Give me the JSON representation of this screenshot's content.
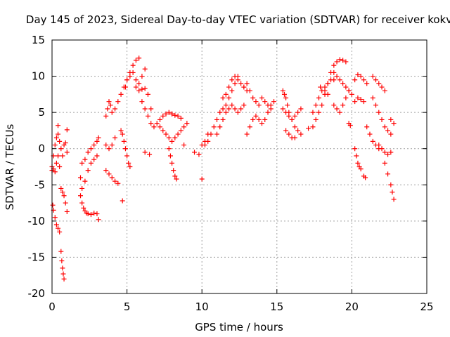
{
  "chart_data": {
    "type": "scatter",
    "title": "Day 145 of 2023, Sidereal Day-to-day VTEC variation (SDTVAR) for receiver kokv",
    "xlabel": "GPS time / hours",
    "ylabel": "SDTVAR / TECUs",
    "xlim": [
      0,
      25
    ],
    "ylim": [
      -20,
      15
    ],
    "xticks": [
      0,
      5,
      10,
      15,
      20,
      25
    ],
    "yticks": [
      -20,
      -15,
      -10,
      -5,
      0,
      5,
      10,
      15
    ],
    "grid": true,
    "marker": "+",
    "marker_color": "#ff0000",
    "series": [
      {
        "name": "arc1",
        "x": [
          0.0,
          0.1,
          0.2,
          0.3,
          0.4,
          0.5,
          0.6,
          0.7,
          0.8,
          0.9,
          1.0
        ],
        "y": [
          -2.5,
          -1.0,
          0.5,
          1.5,
          2.0,
          1.0,
          0.0,
          -1.0,
          0.5,
          0.8,
          -0.5
        ]
      },
      {
        "name": "arc2",
        "x": [
          0.0,
          0.1,
          0.2,
          0.3,
          0.4,
          0.5
        ],
        "y": [
          -3.0,
          -2.8,
          -3.2,
          -2.0,
          -1.0,
          -2.5
        ]
      },
      {
        "name": "arc3",
        "x": [
          0.05,
          0.1,
          0.2,
          0.3,
          0.4,
          0.5
        ],
        "y": [
          -7.8,
          -8.5,
          -9.5,
          -10.5,
          -11.0,
          -11.5
        ]
      },
      {
        "name": "arc4",
        "x": [
          0.6,
          0.65,
          0.7,
          0.75,
          0.8
        ],
        "y": [
          -14.2,
          -15.5,
          -16.5,
          -17.3,
          -18.0
        ]
      },
      {
        "name": "arc5",
        "x": [
          0.6,
          0.7,
          0.8,
          0.9,
          1.0
        ],
        "y": [
          -5.5,
          -6.0,
          -6.5,
          -7.5,
          -8.7
        ]
      },
      {
        "name": "arc6",
        "x": [
          0.4,
          1.0
        ],
        "y": [
          3.2,
          2.6
        ]
      },
      {
        "name": "arc7",
        "x": [
          1.9,
          2.0,
          2.1,
          2.2,
          2.3,
          2.4,
          2.6,
          2.8,
          3.0,
          3.1
        ],
        "y": [
          -6.5,
          -7.5,
          -8.2,
          -8.6,
          -8.9,
          -9.0,
          -9.1,
          -8.9,
          -9.0,
          -9.8
        ]
      },
      {
        "name": "arc8",
        "x": [
          1.9,
          2.0,
          2.2,
          2.4,
          2.6,
          2.8,
          3.0
        ],
        "y": [
          -4.0,
          -5.5,
          -4.5,
          -3.0,
          -2.0,
          -1.5,
          -1.0
        ]
      },
      {
        "name": "arc9",
        "x": [
          2.0,
          2.2,
          2.4,
          2.6,
          2.8,
          3.0,
          3.1
        ],
        "y": [
          -2.0,
          -1.5,
          -0.5,
          0.0,
          0.5,
          1.0,
          1.5
        ]
      },
      {
        "name": "arc10",
        "x": [
          3.6,
          3.7,
          3.8,
          3.9,
          4.0,
          4.2,
          4.4,
          4.6,
          4.8,
          5.0,
          5.2,
          5.4,
          5.6,
          5.8
        ],
        "y": [
          4.5,
          5.5,
          6.5,
          6.0,
          5.0,
          5.5,
          6.5,
          7.5,
          8.5,
          9.5,
          10.5,
          11.5,
          12.2,
          12.5
        ]
      },
      {
        "name": "arc11",
        "x": [
          3.6,
          3.8,
          4.0,
          4.2,
          4.4
        ],
        "y": [
          -3.0,
          -3.5,
          -4.0,
          -4.5,
          -4.8
        ]
      },
      {
        "name": "arc12",
        "x": [
          3.6,
          3.8,
          4.0,
          4.2
        ],
        "y": [
          0.5,
          0.0,
          0.5,
          1.5
        ]
      },
      {
        "name": "arc13",
        "x": [
          4.6,
          4.7,
          4.8,
          4.9,
          5.0,
          5.1,
          5.2
        ],
        "y": [
          2.5,
          2.0,
          1.0,
          0.0,
          -1.0,
          -2.0,
          -2.5
        ]
      },
      {
        "name": "arc14",
        "x": [
          4.7
        ],
        "y": [
          -7.2
        ]
      },
      {
        "name": "arc15",
        "x": [
          4.9,
          5.0,
          5.2,
          5.4,
          5.6,
          5.8,
          6.0,
          6.2
        ],
        "y": [
          8.5,
          9.5,
          10.0,
          10.5,
          9.5,
          9.0,
          10.0,
          11.0
        ]
      },
      {
        "name": "arc16",
        "x": [
          5.6,
          5.8,
          6.0,
          6.2,
          6.4,
          6.6
        ],
        "y": [
          8.5,
          8.0,
          6.5,
          5.5,
          4.5,
          3.5
        ]
      },
      {
        "name": "arc17",
        "x": [
          6.0,
          6.2,
          6.4,
          6.6,
          6.8
        ],
        "y": [
          8.2,
          8.3,
          7.5,
          5.5,
          3.0
        ]
      },
      {
        "name": "arc18",
        "x": [
          6.2,
          6.5
        ],
        "y": [
          -0.5,
          -0.8
        ]
      },
      {
        "name": "arc19",
        "x": [
          7.0,
          7.2,
          7.4,
          7.6,
          7.8,
          8.0
        ],
        "y": [
          3.5,
          4.0,
          4.5,
          4.8,
          5.0,
          4.8
        ]
      },
      {
        "name": "arc20",
        "x": [
          7.2,
          7.4,
          7.6,
          7.8,
          8.0,
          8.2,
          8.4,
          8.6,
          8.8,
          9.0
        ],
        "y": [
          3.0,
          2.5,
          2.0,
          1.5,
          1.0,
          1.5,
          2.0,
          2.5,
          3.0,
          3.5
        ]
      },
      {
        "name": "arc21",
        "x": [
          7.8,
          7.9,
          8.0,
          8.1,
          8.2,
          8.3
        ],
        "y": [
          0.0,
          -1.0,
          -2.0,
          -3.0,
          -3.8,
          -4.2
        ]
      },
      {
        "name": "arc22",
        "x": [
          8.0,
          8.2,
          8.4,
          8.6,
          8.8
        ],
        "y": [
          4.8,
          4.6,
          4.5,
          4.2,
          0.5
        ]
      },
      {
        "name": "arc23",
        "x": [
          9.5,
          9.8,
          10.0,
          10.2,
          10.4
        ],
        "y": [
          -0.5,
          -0.8,
          0.5,
          1.0,
          2.0
        ]
      },
      {
        "name": "arc24",
        "x": [
          10.0
        ],
        "y": [
          -4.2
        ]
      },
      {
        "name": "arc25",
        "x": [
          10.2,
          10.4,
          10.6,
          10.8,
          11.0,
          11.2,
          11.4,
          11.6,
          11.8,
          12.0,
          12.2,
          12.4
        ],
        "y": [
          0.5,
          1.0,
          2.0,
          3.0,
          4.0,
          5.0,
          5.5,
          6.0,
          7.0,
          8.0,
          9.0,
          10.0
        ]
      },
      {
        "name": "arc26",
        "x": [
          11.0,
          11.2,
          11.4,
          11.6,
          11.8,
          12.0,
          12.2,
          12.4,
          12.6,
          12.8
        ],
        "y": [
          2.0,
          3.0,
          4.0,
          5.0,
          5.5,
          6.0,
          5.5,
          5.0,
          5.5,
          6.0
        ]
      },
      {
        "name": "arc27",
        "x": [
          11.4,
          11.6,
          11.8,
          12.0,
          12.2,
          12.4,
          12.6,
          12.8,
          13.0
        ],
        "y": [
          7.0,
          7.5,
          8.5,
          9.5,
          10.0,
          9.5,
          9.0,
          8.5,
          8.0
        ]
      },
      {
        "name": "arc28",
        "x": [
          12.8,
          13.0,
          13.2,
          13.4,
          13.6,
          13.8,
          14.0,
          14.2,
          14.4,
          14.6
        ],
        "y": [
          8.5,
          9.0,
          8.0,
          7.0,
          6.5,
          6.0,
          7.0,
          6.5,
          6.0,
          5.5
        ]
      },
      {
        "name": "arc29",
        "x": [
          13.0,
          13.2,
          13.4,
          13.6,
          13.8
        ],
        "y": [
          2.0,
          3.0,
          4.0,
          4.5,
          4.0
        ]
      },
      {
        "name": "arc30",
        "x": [
          14.0,
          14.2,
          14.4,
          14.6,
          14.8
        ],
        "y": [
          3.5,
          4.0,
          5.0,
          6.0,
          6.5
        ]
      },
      {
        "name": "arc31",
        "x": [
          15.4,
          15.5,
          15.6,
          15.7,
          15.8,
          16.0,
          16.2,
          16.4,
          16.6
        ],
        "y": [
          8.0,
          7.5,
          7.0,
          6.0,
          5.0,
          4.0,
          3.0,
          2.5,
          2.0
        ]
      },
      {
        "name": "arc32",
        "x": [
          15.4,
          15.6,
          15.8,
          16.0,
          16.2,
          16.4,
          16.6
        ],
        "y": [
          5.5,
          5.0,
          4.5,
          4.0,
          4.5,
          5.0,
          5.5
        ]
      },
      {
        "name": "arc33",
        "x": [
          15.6,
          15.8,
          16.0,
          16.2
        ],
        "y": [
          2.5,
          2.0,
          1.5,
          1.5
        ]
      },
      {
        "name": "arc34",
        "x": [
          17.1
        ],
        "y": [
          2.8
        ]
      },
      {
        "name": "arc35",
        "x": [
          17.4,
          17.6,
          17.8,
          18.0,
          18.2,
          18.4,
          18.6,
          18.8,
          19.0,
          19.2,
          19.4,
          19.6
        ],
        "y": [
          3.0,
          4.0,
          5.0,
          6.0,
          7.5,
          9.0,
          10.5,
          11.5,
          12.0,
          12.3,
          12.2,
          12.0
        ]
      },
      {
        "name": "arc36",
        "x": [
          17.4,
          17.6,
          17.8,
          18.0,
          18.2,
          18.4,
          18.6,
          18.8
        ],
        "y": [
          5.0,
          6.0,
          7.0,
          8.0,
          8.5,
          9.0,
          9.5,
          9.5
        ]
      },
      {
        "name": "arc37",
        "x": [
          17.9,
          18.2,
          18.4
        ],
        "y": [
          8.5,
          8.0,
          7.5
        ]
      },
      {
        "name": "arc38",
        "x": [
          18.8,
          19.0,
          19.2,
          19.4,
          19.6,
          19.8
        ],
        "y": [
          6.0,
          5.5,
          5.0,
          6.0,
          7.0,
          8.0
        ]
      },
      {
        "name": "arc39",
        "x": [
          18.8,
          19.0,
          19.2,
          19.4,
          19.6,
          19.8,
          20.0
        ],
        "y": [
          10.5,
          10.0,
          9.5,
          9.0,
          8.5,
          8.0,
          7.5
        ]
      },
      {
        "name": "arc40",
        "x": [
          19.8,
          19.9
        ],
        "y": [
          3.5,
          3.2
        ]
      },
      {
        "name": "arc41",
        "x": [
          20.2,
          20.4,
          20.6,
          20.8,
          21.0
        ],
        "y": [
          9.5,
          10.2,
          10.0,
          9.5,
          9.0
        ]
      },
      {
        "name": "arc42",
        "x": [
          20.2,
          20.4,
          20.6,
          20.8
        ],
        "y": [
          6.5,
          7.0,
          6.8,
          6.5
        ]
      },
      {
        "name": "arc43",
        "x": [
          20.2,
          20.3,
          20.4,
          20.5,
          20.6
        ],
        "y": [
          0.0,
          -1.0,
          -2.0,
          -2.5,
          -2.8
        ]
      },
      {
        "name": "arc44",
        "x": [
          20.8,
          20.9
        ],
        "y": [
          -3.8,
          -4.0
        ]
      },
      {
        "name": "arc45",
        "x": [
          21.0,
          21.2,
          21.4,
          21.6,
          21.8
        ],
        "y": [
          3.0,
          2.0,
          1.0,
          0.5,
          0.0
        ]
      },
      {
        "name": "arc46",
        "x": [
          21.4,
          21.6,
          21.8,
          22.0,
          22.2
        ],
        "y": [
          10.0,
          9.5,
          9.0,
          8.5,
          8.0
        ]
      },
      {
        "name": "arc47",
        "x": [
          21.4,
          21.6,
          21.8,
          22.0,
          22.2,
          22.4,
          22.6
        ],
        "y": [
          7.0,
          6.0,
          5.0,
          4.0,
          3.0,
          2.5,
          2.0
        ]
      },
      {
        "name": "arc48",
        "x": [
          21.8,
          22.0,
          22.2,
          22.4,
          22.6
        ],
        "y": [
          0.5,
          0.0,
          -0.5,
          -0.8,
          -0.5
        ]
      },
      {
        "name": "arc49",
        "x": [
          22.2,
          22.4,
          22.6,
          22.7,
          22.8
        ],
        "y": [
          -2.0,
          -3.5,
          -5.0,
          -6.0,
          -7.0
        ]
      },
      {
        "name": "arc50",
        "x": [
          22.6,
          22.8
        ],
        "y": [
          4.0,
          3.5
        ]
      }
    ]
  }
}
